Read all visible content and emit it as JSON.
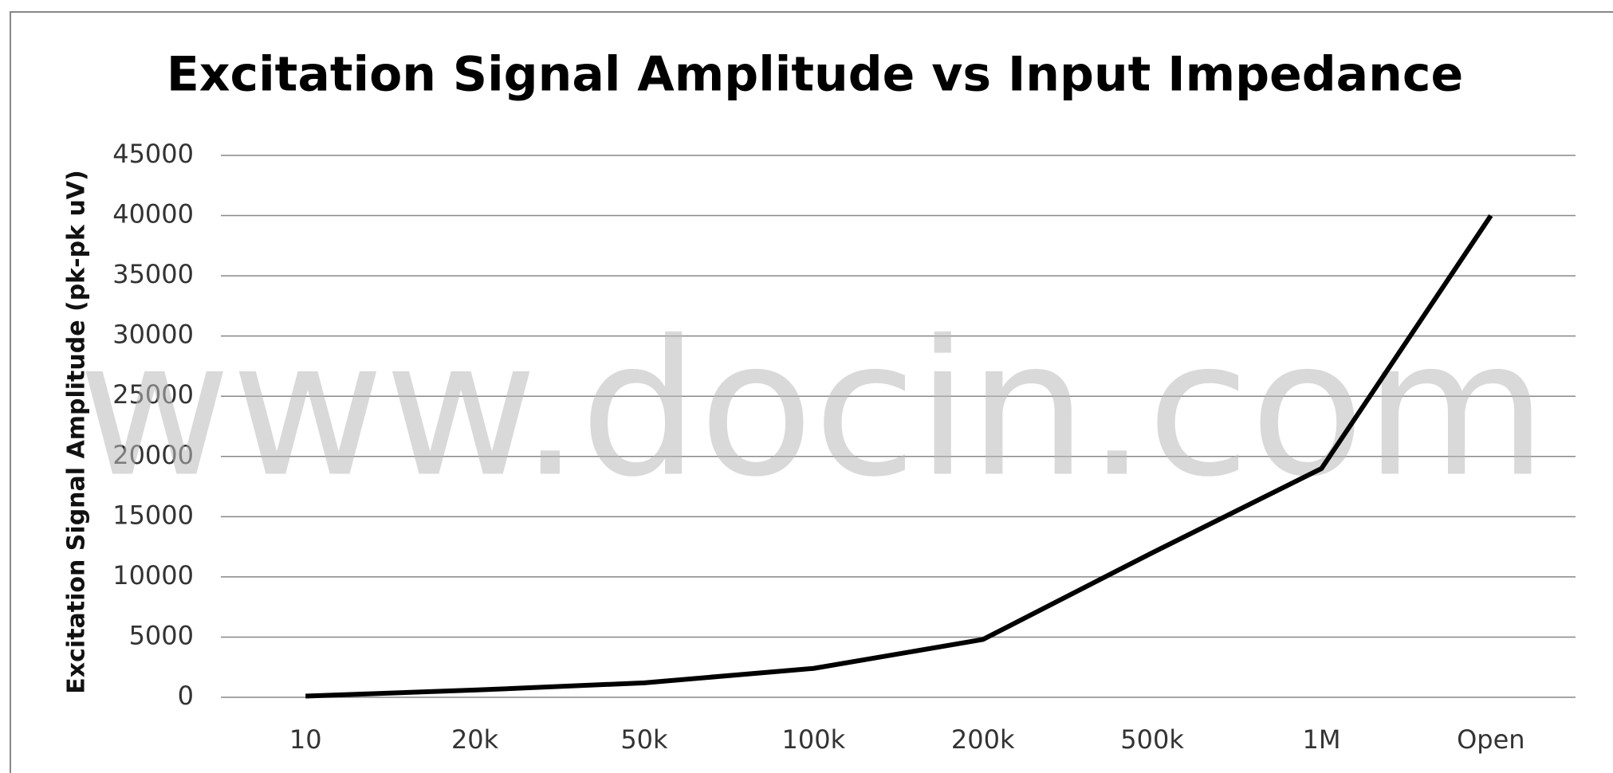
{
  "chart_data": {
    "type": "line",
    "title": "Excitation Signal Amplitude vs Input Impedance",
    "y_label": "Excitation Signal Amplitude (pk-pk uV)",
    "watermark": "www.docin.com",
    "categories": [
      "10",
      "20k",
      "50k",
      "100k",
      "200k",
      "500k",
      "1M",
      "Open"
    ],
    "series": [
      {
        "name": "Amplitude",
        "color": "#000000",
        "values": [
          100,
          600,
          1200,
          2400,
          4800,
          12000,
          19000,
          40000
        ]
      }
    ],
    "ylim": [
      0,
      45000
    ],
    "yticks": [
      0,
      5000,
      10000,
      15000,
      20000,
      25000,
      30000,
      35000,
      40000,
      45000
    ],
    "grid": true
  }
}
